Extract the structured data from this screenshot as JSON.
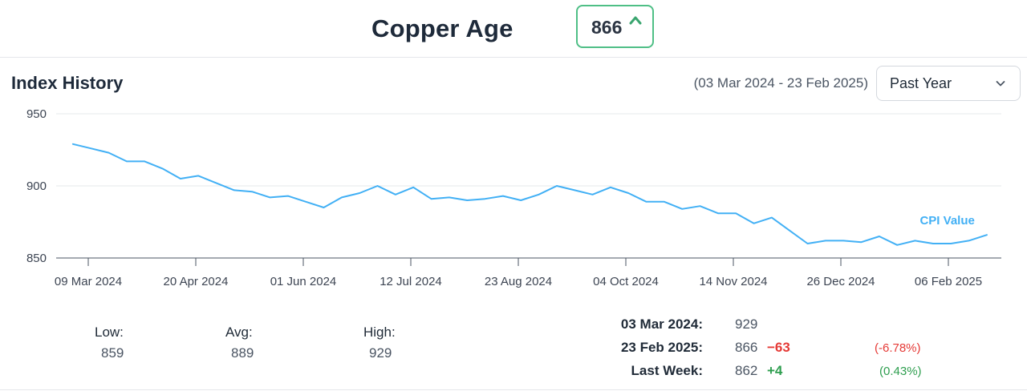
{
  "header": {
    "title": "Copper Age",
    "badge_value": "866",
    "badge_icon": "caret-up-icon",
    "badge_color": "#4fbf86"
  },
  "section": {
    "title": "Index History",
    "date_range": "(03 Mar 2024 - 23 Feb 2025)",
    "period_select": {
      "selected": "Past Year",
      "icon": "chevron-down-icon"
    }
  },
  "chart_data": {
    "type": "line",
    "series": [
      {
        "name": "CPI Value",
        "color": "#42b0f5",
        "values": [
          929,
          926,
          923,
          917,
          917,
          912,
          905,
          907,
          902,
          897,
          896,
          892,
          893,
          889,
          885,
          892,
          895,
          900,
          894,
          899,
          891,
          892,
          890,
          891,
          893,
          890,
          894,
          900,
          897,
          894,
          899,
          895,
          889,
          889,
          884,
          886,
          881,
          881,
          874,
          878,
          869,
          860,
          862,
          862,
          861,
          865,
          859,
          862,
          860,
          860,
          862,
          866
        ]
      }
    ],
    "x_start": "2024-03-03",
    "x_end": "2025-02-23",
    "x_ticks": [
      "09 Mar 2024",
      "20 Apr 2024",
      "01 Jun 2024",
      "12 Jul 2024",
      "23 Aug 2024",
      "04 Oct 2024",
      "14 Nov 2024",
      "26 Dec 2024",
      "06 Feb 2025"
    ],
    "y_ticks": [
      950,
      900,
      850
    ],
    "ylim": [
      850,
      950
    ],
    "grid": true,
    "legend": "inline-end"
  },
  "stats": {
    "low_label": "Low:",
    "low_value": "859",
    "avg_label": "Avg:",
    "avg_value": "889",
    "high_label": "High:",
    "high_value": "929"
  },
  "comparison": {
    "rows": [
      {
        "label": "03 Mar 2024:",
        "value": "929",
        "change": "",
        "pct": ""
      },
      {
        "label": "23 Feb 2025:",
        "value": "866",
        "change": "−63",
        "pct": "(-6.78%)"
      },
      {
        "label": "Last Week:",
        "value": "862",
        "change": "+4",
        "pct": "(0.43%)"
      }
    ],
    "negative_color": "#e53935",
    "positive_color": "#2e9e4f"
  }
}
